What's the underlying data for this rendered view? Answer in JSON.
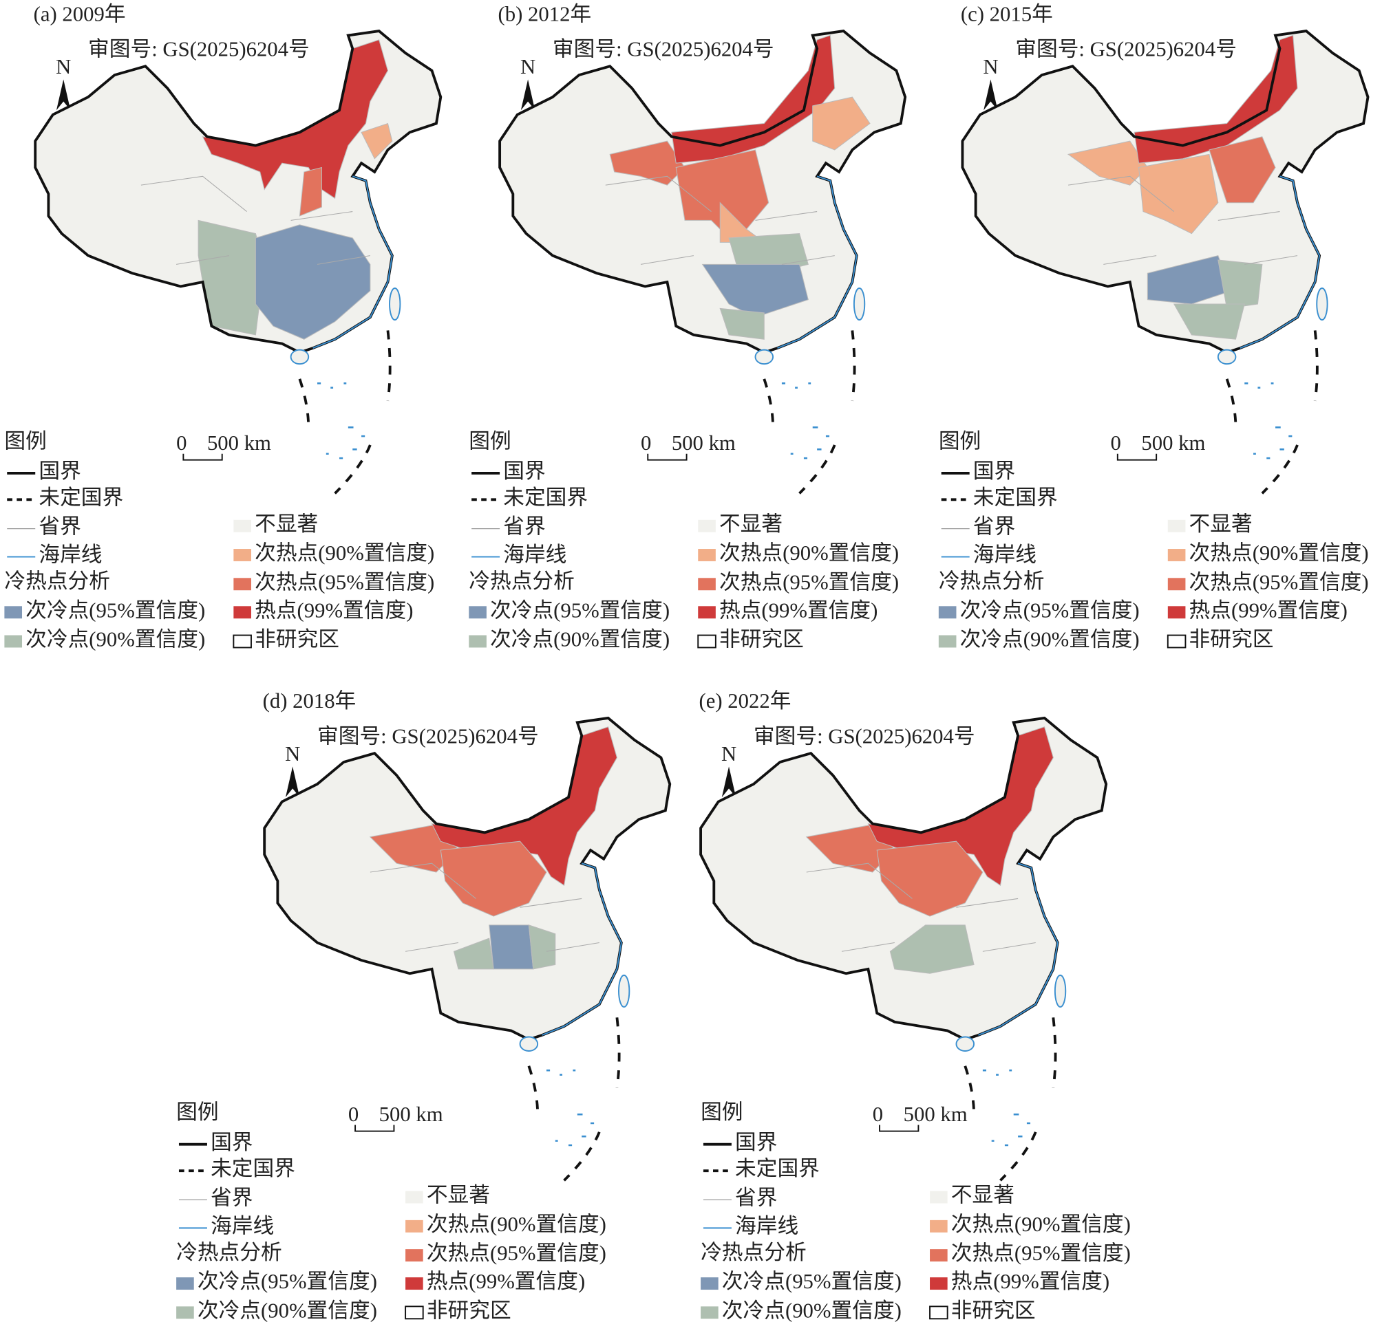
{
  "panels": [
    {
      "title": "(a) 2009年"
    },
    {
      "title": "(b) 2012年"
    },
    {
      "title": "(c) 2015年"
    },
    {
      "title": "(d) 2018年"
    },
    {
      "title": "(e) 2022年"
    }
  ],
  "approval": "审图号: GS(2025)6204号",
  "north": "N",
  "scale": {
    "zero": "0",
    "length": "500 km"
  },
  "legend": {
    "title": "图例",
    "lines": [
      "国界",
      "未定国界",
      "省界",
      "海岸线"
    ],
    "analysis_title": "冷热点分析",
    "classes": [
      {
        "label": "次冷点(95%置信度)",
        "color": "#7f97b5"
      },
      {
        "label": "次冷点(90%置信度)",
        "color": "#aebfb0"
      },
      {
        "label": "不显著",
        "color": "#f1f1ed"
      },
      {
        "label": "次热点(90%置信度)",
        "color": "#f2ae88"
      },
      {
        "label": "次热点(95%置信度)",
        "color": "#e2735d"
      },
      {
        "label": "热点(99%置信度)",
        "color": "#cf3a3a"
      },
      {
        "label": "非研究区",
        "color": "#ffffff"
      }
    ]
  }
}
